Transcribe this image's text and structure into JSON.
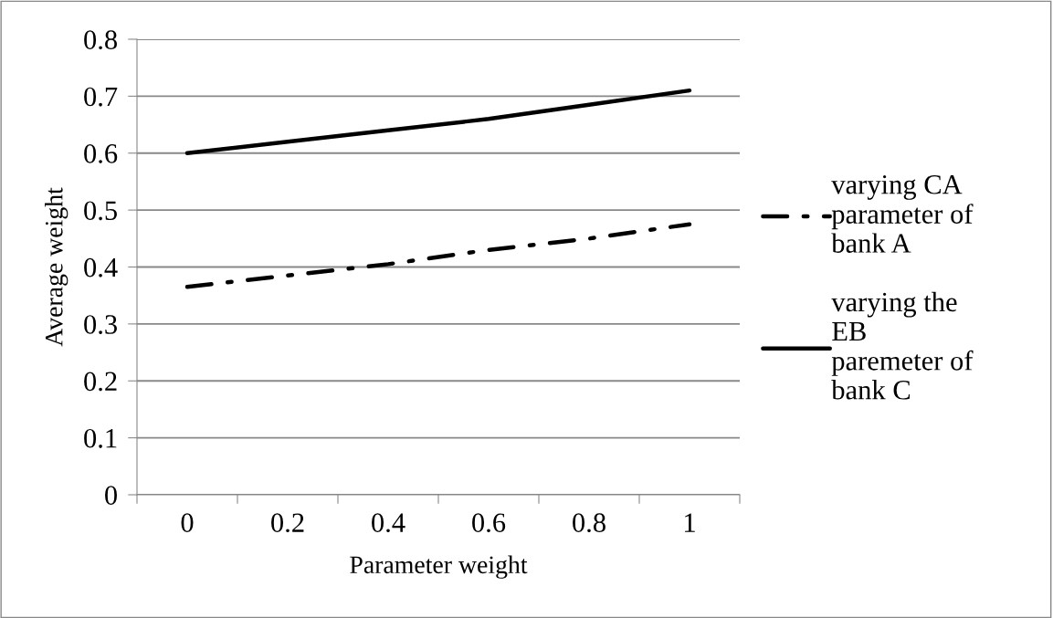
{
  "chart_data": {
    "type": "line",
    "xlabel": "Parameter weight",
    "ylabel": "Average weight",
    "categories": [
      "0",
      "0.2",
      "0.4",
      "0.6",
      "0.8",
      "1"
    ],
    "series": [
      {
        "name": "varying CA\nparameter of\nbank A",
        "color": "#000000",
        "line_style": "dashdot",
        "values": [
          0.365,
          0.385,
          0.405,
          0.43,
          0.45,
          0.475
        ]
      },
      {
        "name": "varying the\nEB\nparemeter of\nbank C",
        "color": "#000000",
        "line_style": "solid",
        "values": [
          0.6,
          0.62,
          0.64,
          0.66,
          0.685,
          0.71
        ]
      }
    ],
    "ylim": [
      0,
      0.8
    ],
    "yticks": [
      0,
      0.1,
      0.2,
      0.3,
      0.4,
      0.5,
      0.6,
      0.7,
      0.8
    ],
    "grid": "y",
    "legend": "right",
    "marker": "none"
  }
}
